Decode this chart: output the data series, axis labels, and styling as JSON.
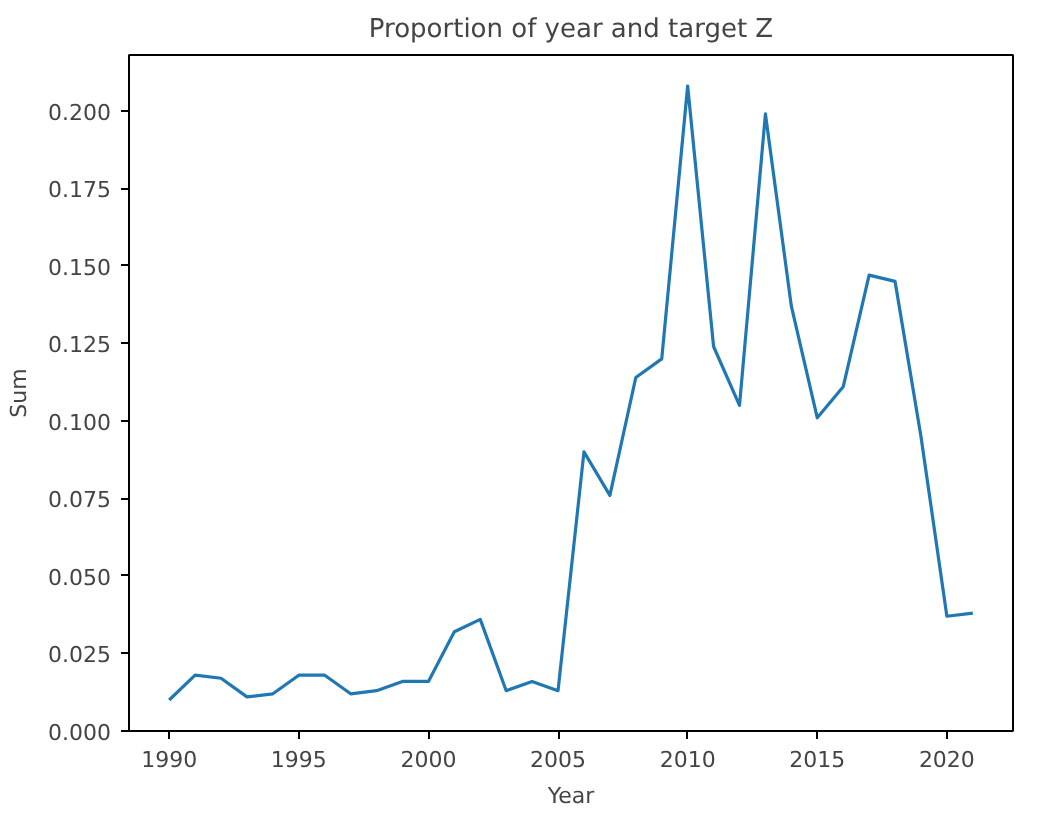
{
  "chart_data": {
    "type": "line",
    "title": "Proportion of year and target Z",
    "xlabel": "Year",
    "ylabel": "Sum",
    "x": [
      1990,
      1991,
      1992,
      1993,
      1994,
      1995,
      1996,
      1997,
      1998,
      1999,
      2000,
      2001,
      2002,
      2003,
      2004,
      2005,
      2006,
      2007,
      2008,
      2009,
      2010,
      2011,
      2012,
      2013,
      2014,
      2015,
      2016,
      2017,
      2018,
      2019,
      2020,
      2021
    ],
    "series": [
      {
        "color": "#1f77b4",
        "values": [
          0.01,
          0.018,
          0.017,
          0.011,
          0.012,
          0.018,
          0.018,
          0.012,
          0.013,
          0.016,
          0.016,
          0.032,
          0.036,
          0.013,
          0.016,
          0.013,
          0.09,
          0.076,
          0.114,
          0.12,
          0.208,
          0.124,
          0.105,
          0.199,
          0.137,
          0.101,
          0.111,
          0.147,
          0.145,
          0.095,
          0.037,
          0.038
        ]
      }
    ],
    "xlim": [
      1988.45,
      2022.55
    ],
    "ylim": [
      0,
      0.218
    ],
    "xticks": [
      1990,
      1995,
      2000,
      2005,
      2010,
      2015,
      2020
    ],
    "yticks": [
      {
        "value": 0,
        "label": "0.000"
      },
      {
        "value": 0.025,
        "label": "0.025"
      },
      {
        "value": 0.05,
        "label": "0.050"
      },
      {
        "value": 0.075,
        "label": "0.075"
      },
      {
        "value": 0.1,
        "label": "0.100"
      },
      {
        "value": 0.125,
        "label": "0.125"
      },
      {
        "value": 0.15,
        "label": "0.150"
      },
      {
        "value": 0.175,
        "label": "0.175"
      },
      {
        "value": 0.2,
        "label": "0.200"
      }
    ],
    "grid": false,
    "marker": "none",
    "line_style": "solid"
  }
}
